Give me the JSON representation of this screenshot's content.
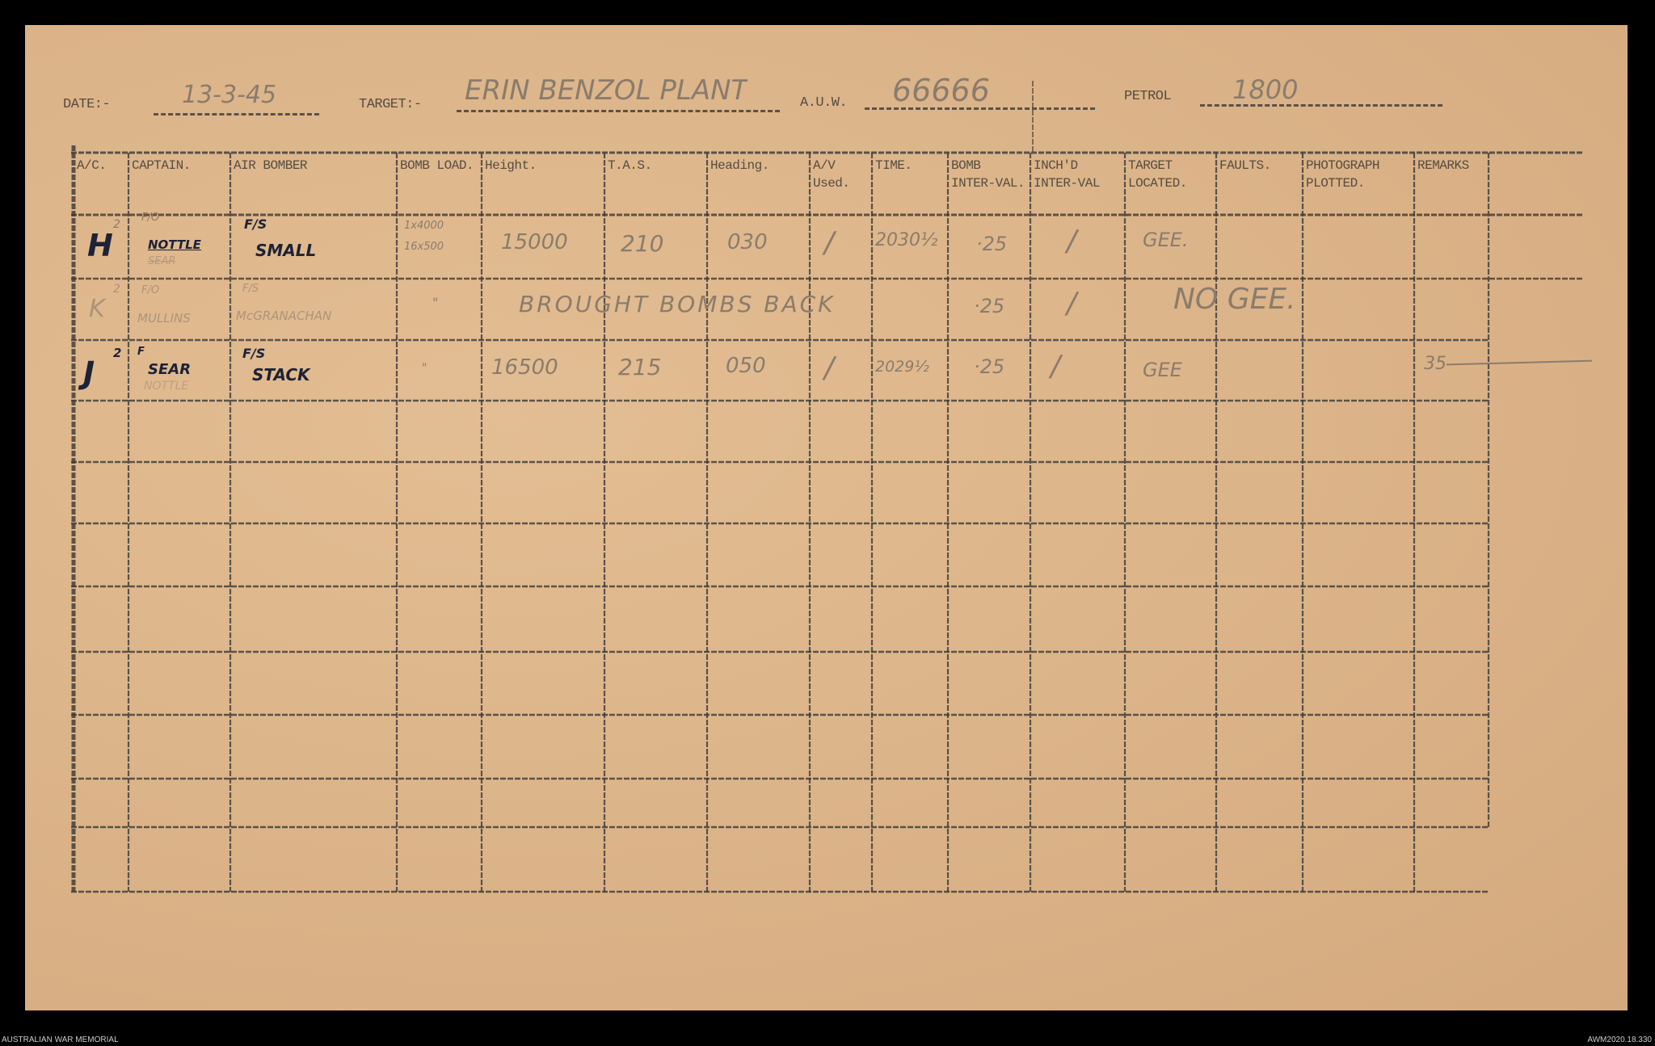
{
  "header": {
    "date_label": "DATE:-",
    "date_value": "13-3-45",
    "target_label": "TARGET:-",
    "target_value": "ERIN BENZOL PLANT",
    "auw_label": "A.U.W.",
    "auw_value": "66666",
    "petrol_label": "PETROL",
    "petrol_value": "1800"
  },
  "columns": [
    "A/C.",
    "CAPTAIN.",
    "AIR BOMBER",
    "BOMB LOAD.",
    "Height.",
    "T.A.S.",
    "Heading.",
    "A/V Used.",
    "TIME.",
    "BOMB INTER-VAL.",
    "INCH'D INTER-VAL",
    "TARGET LOCATED.",
    "FAULTS.",
    "PHOTOGRAPH PLOTTED.",
    "REMARKS"
  ],
  "rows": [
    {
      "ac": "H",
      "ac_sup": "2",
      "captain_rank": "F/O",
      "captain": "NOTTLE",
      "captain_struck": "SEAR",
      "bomber_rank": "F/S",
      "bomber": "SMALL",
      "bomb_load_1": "1x4000",
      "bomb_load_2": "16x500",
      "height": "15000",
      "tas": "210",
      "heading": "030",
      "av": "/",
      "time": "2030½",
      "bomb_interval": "·25",
      "inch_interval": "/",
      "target_located": "GEE.",
      "remarks": ""
    },
    {
      "ac": "K",
      "ac_sup": "2",
      "captain_rank": "F/O",
      "captain": "MULLINS",
      "bomber_rank": "F/S",
      "bomber": "McGRANACHAN",
      "bomb_load": "\"",
      "note": "BROUGHT BOMBS BACK",
      "bomb_interval": "·25",
      "inch_interval": "/",
      "target_located": "NO GEE."
    },
    {
      "ac": "J",
      "ac_sup": "2",
      "captain_rank": "F",
      "captain": "SEAR",
      "captain_struck": "NOTTLE",
      "bomber_rank": "F/S",
      "bomber": "STACK",
      "bomb_load": "\"",
      "height": "16500",
      "tas": "215",
      "heading": "050",
      "av": "/",
      "time": "2029½",
      "bomb_interval": "·25",
      "inch_interval": "/",
      "target_located": "GEE",
      "remarks": "35"
    }
  ],
  "footer": {
    "left": "AUSTRALIAN WAR MEMORIAL",
    "right": "AWM2020.18.330"
  },
  "colors": {
    "paper": "#deb58a",
    "ink": "#1d2236",
    "pencil": "#8a7c6c",
    "grid": "#3b3a36"
  }
}
